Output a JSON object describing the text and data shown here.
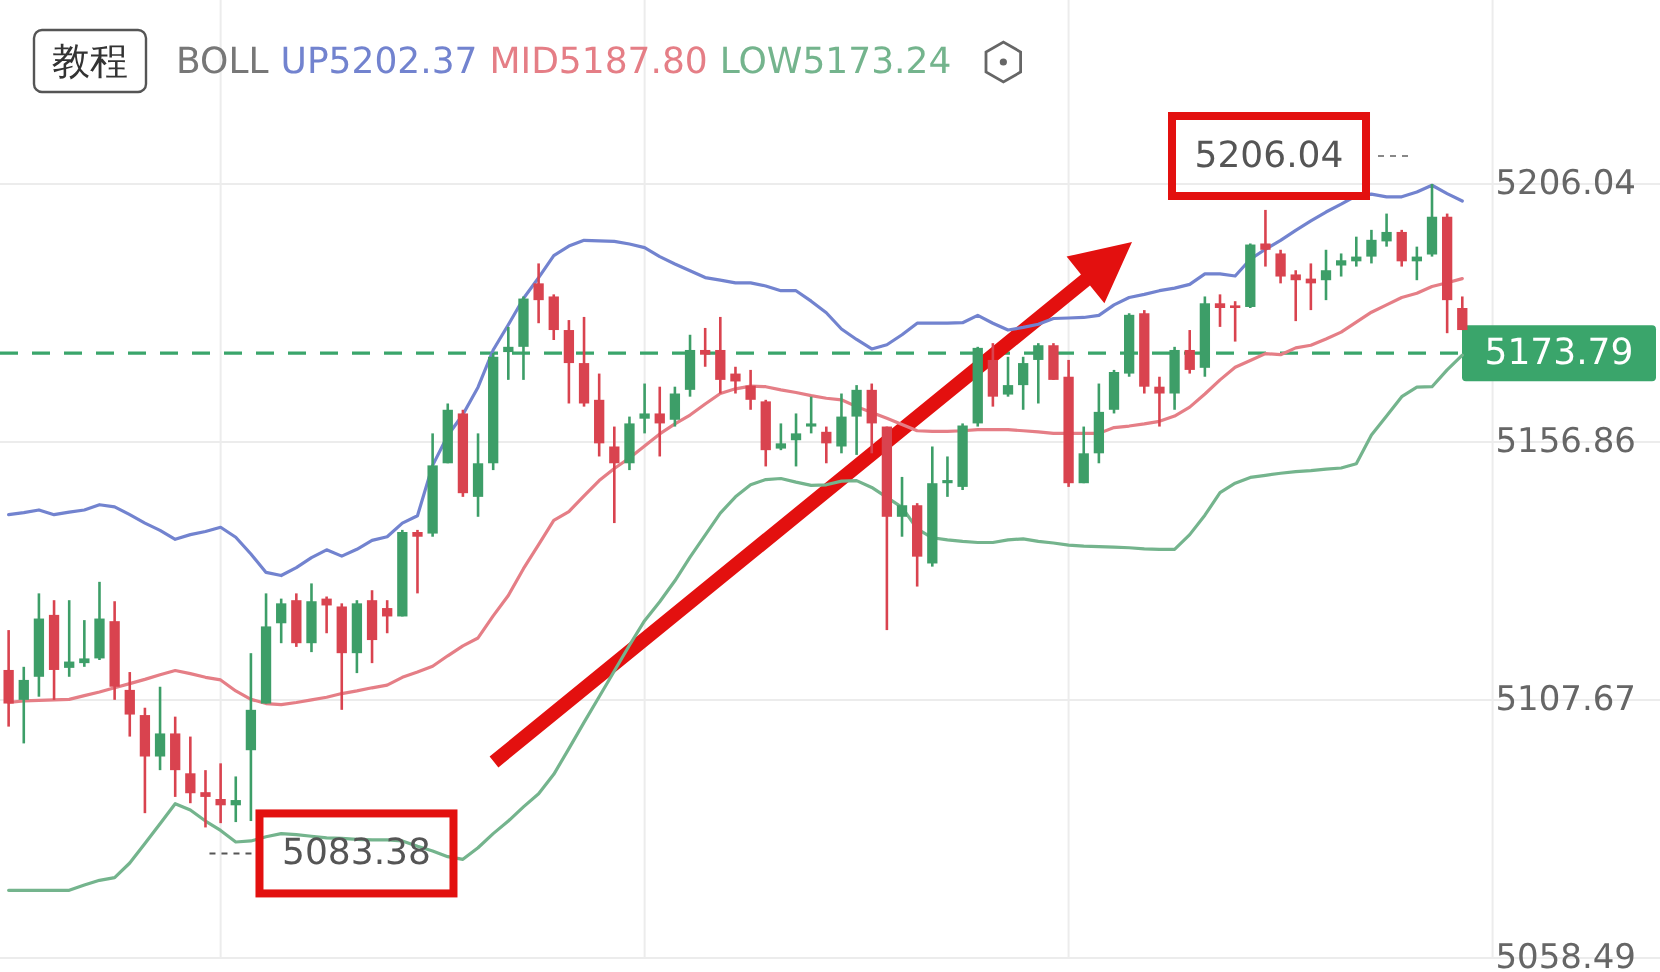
{
  "chart_data": {
    "type": "candlestick",
    "title": "BOLL",
    "categories": [
      null,
      null,
      null,
      null,
      null,
      null,
      null,
      null,
      null,
      null,
      null,
      null,
      null,
      null,
      null,
      null,
      null,
      null,
      null,
      null,
      null,
      null,
      null,
      null,
      null,
      null,
      null,
      null,
      null,
      null,
      null,
      null,
      null,
      null,
      null,
      null,
      null,
      null,
      null,
      null,
      null,
      null,
      null,
      null,
      null,
      null,
      null,
      null,
      null,
      null,
      null,
      null,
      null,
      null,
      null,
      null,
      null,
      null,
      null,
      null,
      null,
      null,
      null,
      null,
      null,
      null,
      null,
      null,
      null,
      null,
      null,
      null,
      null,
      null,
      null,
      null,
      null,
      null,
      null,
      null,
      null,
      null,
      null,
      null,
      null,
      null,
      null,
      null,
      null,
      null,
      null,
      null,
      null,
      null,
      null,
      null,
      null
    ],
    "ohlc": [
      [
        5113.4,
        5121.0,
        5102.6,
        5107.0
      ],
      [
        5107.7,
        5114.0,
        5099.4,
        5111.5
      ],
      [
        5112.1,
        5128.0,
        5108.3,
        5123.2
      ],
      [
        5123.9,
        5126.7,
        5107.7,
        5113.4
      ],
      [
        5113.8,
        5126.7,
        5112.1,
        5115.0
      ],
      [
        5114.7,
        5122.9,
        5114.0,
        5115.6
      ],
      [
        5115.6,
        5130.2,
        5115.3,
        5123.2
      ],
      [
        5122.7,
        5126.5,
        5107.7,
        5110.2
      ],
      [
        5109.6,
        5113.0,
        5100.7,
        5104.9
      ],
      [
        5104.8,
        5106.2,
        5086.1,
        5096.9
      ],
      [
        5096.9,
        5110.2,
        5094.3,
        5101.3
      ],
      [
        5101.3,
        5104.5,
        5089.2,
        5094.3
      ],
      [
        5093.7,
        5100.7,
        5088.0,
        5089.9
      ],
      [
        5090.1,
        5094.3,
        5083.38,
        5089.2
      ],
      [
        5088.8,
        5095.6,
        5084.2,
        5087.6
      ],
      [
        5087.6,
        5093.1,
        5084.4,
        5088.6
      ],
      [
        5098.1,
        5116.6,
        5084.6,
        5105.8
      ],
      [
        5107.0,
        5128.0,
        5107.0,
        5121.7
      ],
      [
        5122.3,
        5127.0,
        5118.5,
        5126.1
      ],
      [
        5126.7,
        5128.0,
        5117.8,
        5118.5
      ],
      [
        5118.5,
        5129.9,
        5116.8,
        5126.5
      ],
      [
        5127.0,
        5127.4,
        5120.4,
        5125.7
      ],
      [
        5125.5,
        5126.1,
        5105.8,
        5116.6
      ],
      [
        5116.6,
        5126.7,
        5112.8,
        5126.1
      ],
      [
        5126.7,
        5128.6,
        5114.7,
        5119.1
      ],
      [
        5125.2,
        5126.7,
        5120.4,
        5123.6
      ],
      [
        5123.6,
        5140.1,
        5123.6,
        5139.7
      ],
      [
        5139.7,
        5140.1,
        5128.0,
        5138.8
      ],
      [
        5139.4,
        5158.5,
        5138.8,
        5152.4
      ],
      [
        5152.8,
        5164.2,
        5152.8,
        5163.0
      ],
      [
        5162.3,
        5163.0,
        5146.4,
        5147.1
      ],
      [
        5146.4,
        5158.5,
        5142.6,
        5152.8
      ],
      [
        5152.8,
        5173.8,
        5151.5,
        5173.1
      ],
      [
        5174.0,
        5178.8,
        5168.7,
        5175.0
      ],
      [
        5175.0,
        5184.6,
        5168.7,
        5184.2
      ],
      [
        5187.1,
        5190.9,
        5179.5,
        5183.9
      ],
      [
        5184.6,
        5185.0,
        5176.3,
        5178.2
      ],
      [
        5178.2,
        5180.1,
        5164.2,
        5171.9
      ],
      [
        5171.9,
        5180.7,
        5163.6,
        5164.2
      ],
      [
        5164.9,
        5169.9,
        5154.1,
        5156.6
      ],
      [
        5156.0,
        5159.8,
        5141.4,
        5152.8
      ],
      [
        5152.8,
        5161.7,
        5151.5,
        5160.4
      ],
      [
        5161.3,
        5168.0,
        5158.5,
        5162.3
      ],
      [
        5162.3,
        5167.4,
        5154.1,
        5160.4
      ],
      [
        5161.1,
        5167.4,
        5159.8,
        5166.1
      ],
      [
        5166.8,
        5177.3,
        5165.5,
        5174.4
      ],
      [
        5174.4,
        5178.6,
        5171.2,
        5173.5
      ],
      [
        5174.4,
        5180.7,
        5166.1,
        5168.7
      ],
      [
        5169.9,
        5171.2,
        5166.1,
        5168.4
      ],
      [
        5167.6,
        5170.6,
        5163.0,
        5164.9
      ],
      [
        5164.6,
        5164.9,
        5152.2,
        5155.3
      ],
      [
        5155.6,
        5160.4,
        5155.3,
        5156.6
      ],
      [
        5157.2,
        5162.3,
        5152.2,
        5158.5
      ],
      [
        5159.8,
        5165.5,
        5158.5,
        5160.4
      ],
      [
        5158.8,
        5159.8,
        5152.8,
        5156.6
      ],
      [
        5156.0,
        5166.1,
        5154.7,
        5161.7
      ],
      [
        5161.7,
        5167.7,
        5154.4,
        5166.8
      ],
      [
        5166.8,
        5168.0,
        5154.7,
        5160.4
      ],
      [
        5159.8,
        5159.8,
        5121.0,
        5142.6
      ],
      [
        5142.6,
        5150.2,
        5138.8,
        5144.8
      ],
      [
        5144.8,
        5145.2,
        5129.3,
        5135.0
      ],
      [
        5133.7,
        5156.0,
        5133.1,
        5149.0
      ],
      [
        5149.0,
        5154.1,
        5146.4,
        5149.6
      ],
      [
        5148.3,
        5160.4,
        5147.7,
        5160.0
      ],
      [
        5160.4,
        5175.0,
        5159.8,
        5174.8
      ],
      [
        5172.5,
        5175.7,
        5163.6,
        5165.5
      ],
      [
        5165.9,
        5173.1,
        5165.5,
        5167.7
      ],
      [
        5167.7,
        5173.1,
        5163.0,
        5171.9
      ],
      [
        5172.5,
        5175.7,
        5164.2,
        5175.3
      ],
      [
        5175.3,
        5175.7,
        5168.7,
        5168.7
      ],
      [
        5169.3,
        5172.5,
        5148.3,
        5149.0
      ],
      [
        5149.0,
        5159.8,
        5149.0,
        5154.7
      ],
      [
        5154.7,
        5168.0,
        5152.8,
        5162.6
      ],
      [
        5163.0,
        5170.6,
        5162.3,
        5170.2
      ],
      [
        5169.9,
        5181.4,
        5169.3,
        5181.1
      ],
      [
        5181.4,
        5182.0,
        5166.1,
        5167.4
      ],
      [
        5167.4,
        5169.3,
        5159.8,
        5166.1
      ],
      [
        5166.1,
        5175.0,
        5163.0,
        5174.4
      ],
      [
        5174.4,
        5178.2,
        5169.9,
        5170.6
      ],
      [
        5171.0,
        5184.6,
        5169.3,
        5183.3
      ],
      [
        5183.3,
        5185.0,
        5178.8,
        5182.4
      ],
      [
        5182.9,
        5183.7,
        5176.0,
        5182.4
      ],
      [
        5182.6,
        5194.7,
        5182.4,
        5194.5
      ],
      [
        5194.7,
        5201.1,
        5190.3,
        5193.5
      ],
      [
        5192.8,
        5193.5,
        5187.1,
        5188.4
      ],
      [
        5188.8,
        5189.6,
        5179.9,
        5187.7
      ],
      [
        5188.0,
        5190.9,
        5182.0,
        5187.1
      ],
      [
        5187.7,
        5193.5,
        5183.9,
        5189.6
      ],
      [
        5190.5,
        5192.8,
        5188.4,
        5191.5
      ],
      [
        5191.3,
        5196.0,
        5190.3,
        5192.2
      ],
      [
        5192.2,
        5197.3,
        5190.9,
        5195.4
      ],
      [
        5195.1,
        5200.4,
        5194.1,
        5196.9
      ],
      [
        5196.9,
        5197.3,
        5190.3,
        5191.3
      ],
      [
        5191.3,
        5194.1,
        5187.7,
        5192.2
      ],
      [
        5192.6,
        5206.04,
        5192.2,
        5199.8
      ],
      [
        5199.8,
        5200.4,
        5177.6,
        5183.9
      ],
      [
        5182.4,
        5184.6,
        5178.2,
        5178.2
      ]
    ],
    "series": [
      {
        "name": "UP5202.37",
        "type": "line",
        "color": "#7283cf",
        "values": [
          5143.0,
          5143.4,
          5143.9,
          5143.0,
          5143.5,
          5143.9,
          5144.9,
          5144.5,
          5143.0,
          5141.4,
          5140.0,
          5138.3,
          5139.2,
          5139.8,
          5140.6,
          5138.7,
          5135.5,
          5132.0,
          5131.4,
          5132.9,
          5134.8,
          5136.3,
          5135.1,
          5136.4,
          5138.1,
          5138.8,
          5141.4,
          5142.8,
          5152.4,
          5158.1,
          5162.1,
          5167.3,
          5174.4,
          5179.2,
          5184.2,
          5188.2,
          5192.4,
          5194.2,
          5195.3,
          5195.2,
          5195.1,
          5194.6,
          5193.9,
          5192.2,
          5190.8,
          5189.5,
          5188.2,
          5187.7,
          5187.2,
          5187.2,
          5186.6,
          5185.7,
          5185.7,
          5183.7,
          5181.5,
          5178.4,
          5176.4,
          5174.6,
          5175.4,
          5177.3,
          5179.5,
          5179.5,
          5179.5,
          5179.6,
          5181.0,
          5179.5,
          5178.2,
          5178.7,
          5179.3,
          5180.4,
          5180.5,
          5180.6,
          5181.0,
          5183.0,
          5184.4,
          5185.0,
          5185.7,
          5186.2,
          5186.9,
          5188.9,
          5188.9,
          5188.5,
          5191.7,
          5193.6,
          5195.3,
          5197.2,
          5199.0,
          5200.7,
          5202.2,
          5203.8,
          5204.1,
          5203.6,
          5203.6,
          5204.5,
          5205.8,
          5204.2,
          5202.8
        ]
      },
      {
        "name": "MID5187.80",
        "type": "line",
        "color": "#e57e86",
        "values": [
          5107.2,
          5107.5,
          5107.6,
          5107.7,
          5107.8,
          5108.5,
          5109.2,
          5110.0,
          5110.8,
          5111.6,
          5112.5,
          5113.3,
          5112.7,
          5112.0,
          5111.5,
          5109.4,
          5107.8,
          5107.0,
          5106.8,
          5107.2,
          5107.7,
          5108.2,
          5108.9,
          5109.4,
          5110.0,
          5110.5,
          5112.0,
          5113.0,
          5114.1,
          5116.1,
          5118.0,
          5119.5,
          5123.7,
          5127.6,
          5132.7,
          5137.3,
          5141.9,
          5143.6,
          5146.6,
          5149.5,
          5151.8,
          5153.8,
          5156.1,
          5158.4,
          5160.3,
          5162.0,
          5164.1,
          5166.1,
          5167.0,
          5167.5,
          5167.4,
          5166.8,
          5166.3,
          5165.7,
          5165.2,
          5164.9,
          5163.6,
          5162.5,
          5161.4,
          5160.2,
          5159.0,
          5158.9,
          5158.9,
          5159.0,
          5159.2,
          5159.2,
          5159.2,
          5159.0,
          5158.8,
          5158.5,
          5158.5,
          5158.5,
          5158.5,
          5159.6,
          5159.9,
          5160.3,
          5160.8,
          5161.8,
          5163.5,
          5166.0,
          5168.7,
          5171.1,
          5172.4,
          5173.7,
          5173.5,
          5174.8,
          5175.3,
          5176.5,
          5177.8,
          5179.7,
          5181.6,
          5183.0,
          5184.4,
          5185.2,
          5186.5,
          5187.2,
          5188.0
        ]
      },
      {
        "name": "LOW5173.24",
        "type": "line",
        "color": "#74b48d",
        "values": [
          5071.4,
          5071.4,
          5071.4,
          5071.4,
          5071.4,
          5072.4,
          5073.3,
          5073.8,
          5076.6,
          5080.3,
          5084.1,
          5087.9,
          5086.7,
          5084.6,
          5082.8,
          5080.6,
          5080.8,
          5081.6,
          5082.2,
          5082.0,
          5081.7,
          5081.4,
          5081.3,
          5081.1,
          5081.0,
          5081.0,
          5080.8,
          5079.8,
          5078.9,
          5077.8,
          5077.3,
          5079.5,
          5082.2,
          5084.6,
          5087.3,
          5089.8,
          5093.5,
          5098.4,
          5103.4,
          5108.3,
          5113.2,
          5118.1,
          5122.8,
          5126.4,
          5130.4,
          5134.9,
          5139.1,
          5143.3,
          5146.4,
          5148.7,
          5149.7,
          5149.9,
          5149.2,
          5148.6,
          5148.7,
          5149.4,
          5149.5,
          5148.2,
          5146.3,
          5144.4,
          5140.3,
          5138.6,
          5138.2,
          5137.9,
          5137.7,
          5137.7,
          5138.2,
          5138.4,
          5137.9,
          5137.6,
          5137.2,
          5137.0,
          5136.9,
          5136.8,
          5136.7,
          5136.5,
          5136.4,
          5136.4,
          5139.2,
          5142.9,
          5147.2,
          5149.0,
          5150.1,
          5150.5,
          5150.9,
          5151.2,
          5151.4,
          5151.7,
          5151.9,
          5152.7,
          5158.2,
          5161.8,
          5165.5,
          5167.3,
          5167.4,
          5170.6,
          5173.4
        ]
      }
    ],
    "ylim": [
      5058.49,
      5206.04
    ],
    "yticks": [
      5206.04,
      5156.86,
      5107.67,
      5058.49
    ],
    "grid": true,
    "legend": "top",
    "tick_labels": "y",
    "ref_lines": [
      {
        "axis": "y",
        "value": 5173.79,
        "label": "5173.79",
        "color": "#3aa56b",
        "line_style": "dashed"
      }
    ],
    "annotations": [
      "教程",
      "5206.04",
      "5083.38"
    ]
  }
}
